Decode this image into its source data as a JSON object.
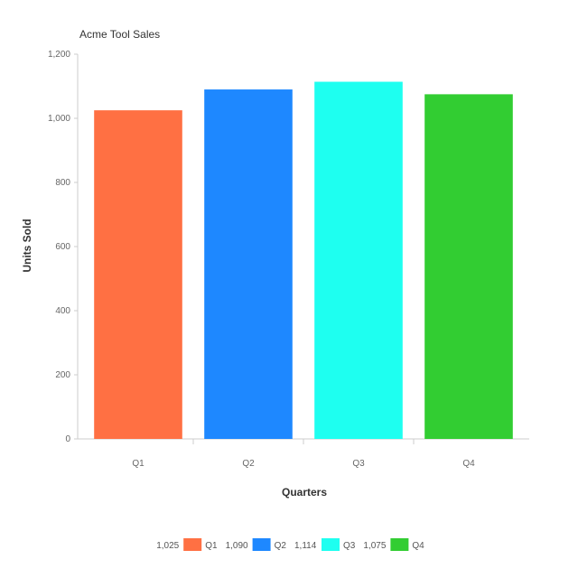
{
  "chart_data": {
    "type": "bar",
    "title": "Acme Tool Sales",
    "xlabel": "Quarters",
    "ylabel": "Units Sold",
    "categories": [
      "Q1",
      "Q2",
      "Q3",
      "Q4"
    ],
    "values": [
      1025,
      1090,
      1114,
      1075
    ],
    "value_labels": [
      "1,025",
      "1,090",
      "1,114",
      "1,075"
    ],
    "ylim": [
      0,
      1200
    ],
    "yticks": [
      0,
      200,
      400,
      600,
      800,
      1000,
      1200
    ],
    "ytick_labels": [
      "0",
      "200",
      "400",
      "600",
      "800",
      "1,000",
      "1,200"
    ],
    "colors": [
      "#FF7043",
      "#1E88FF",
      "#1EFFF0",
      "#32CD32"
    ],
    "legend_position": "bottom",
    "grid": false
  }
}
